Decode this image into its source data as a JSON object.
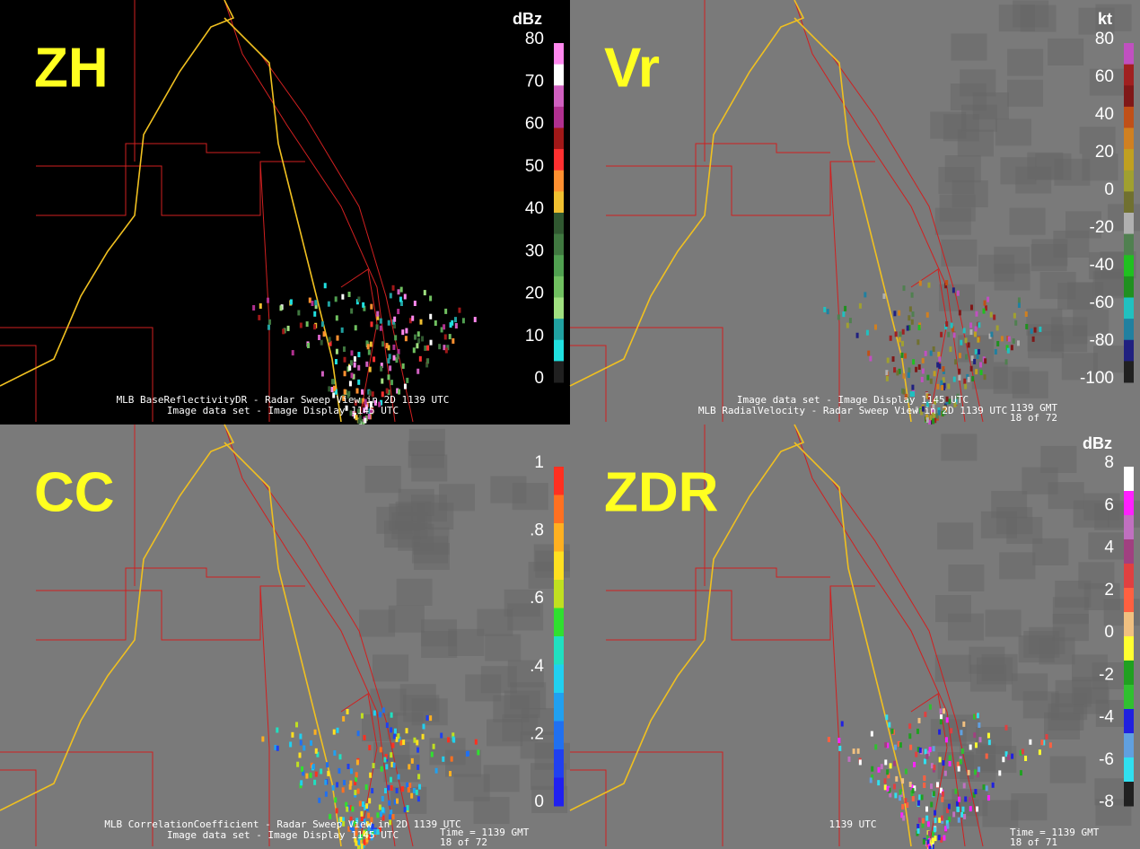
{
  "panels": [
    {
      "label": "ZH",
      "unit": "dBz",
      "background": "#000000",
      "ticks": [
        "80",
        "70",
        "60",
        "50",
        "40",
        "30",
        "20",
        "10",
        "0"
      ],
      "colors": [
        "#ff88ee",
        "#ffffff",
        "#d060c0",
        "#b03090",
        "#a01818",
        "#ff3030",
        "#ff9030",
        "#f0c030",
        "#305830",
        "#407840",
        "#50a050",
        "#70c060",
        "#a0e080",
        "#20a0a0",
        "#20e0e0",
        "#202020"
      ],
      "captions": [
        "MLB BaseReflectivityDR - Radar Sweep View in 2D 1139 UTC",
        "Image data set - Image Display 1145 UTC"
      ]
    },
    {
      "label": "Vr",
      "unit": "kt",
      "background": "#7a7a7a",
      "ticks": [
        "80",
        "60",
        "40",
        "20",
        "0",
        "-20",
        "-40",
        "-60",
        "-80",
        "-100"
      ],
      "colors": [
        "#c050c0",
        "#a02020",
        "#801818",
        "#c05018",
        "#d08020",
        "#c0a020",
        "#a0a030",
        "#707030",
        "#b0b0b0",
        "#508050",
        "#20c020",
        "#209020",
        "#20c0c0",
        "#2080a0",
        "#202080",
        "#202020"
      ],
      "captions": [
        "Image data set - Image Display 1145 UTC",
        "MLB RadialVelocity - Radar Sweep View in 2D 1139 UTC"
      ],
      "extra": [
        "1139 GMT",
        "18 of 72"
      ]
    },
    {
      "label": "CC",
      "background": "#7a7a7a",
      "ticks": [
        "1",
        ".8",
        ".6",
        ".4",
        ".2",
        "0"
      ],
      "colors": [
        "#ff3020",
        "#ff7020",
        "#ffb020",
        "#ffe020",
        "#c0e020",
        "#30e030",
        "#20e0c0",
        "#20d0f0",
        "#20a0f0",
        "#2070f0",
        "#2040f0",
        "#2020f0"
      ],
      "captions": [
        "MLB CorrelationCoefficient - Radar Sweep View in 2D 1139 UTC",
        "Image data set - Image Display 1145 UTC"
      ],
      "extra": [
        "Time = 1139 GMT",
        "18 of 72"
      ]
    },
    {
      "label": "ZDR",
      "unit": "dBz",
      "background": "#7a7a7a",
      "ticks": [
        "8",
        "6",
        "4",
        "2",
        "0",
        "-2",
        "-4",
        "-6",
        "-8"
      ],
      "colors": [
        "#ffffff",
        "#ff20ff",
        "#c070c0",
        "#a04080",
        "#e04040",
        "#ff6040",
        "#f0c080",
        "#ffff30",
        "#20a020",
        "#30c030",
        "#2020e0",
        "#60a0e0",
        "#30e0f0",
        "#202020"
      ],
      "captions": [
        "1139 UTC"
      ],
      "extra": [
        "Time = 1139 GMT",
        "18 of 71"
      ]
    }
  ]
}
